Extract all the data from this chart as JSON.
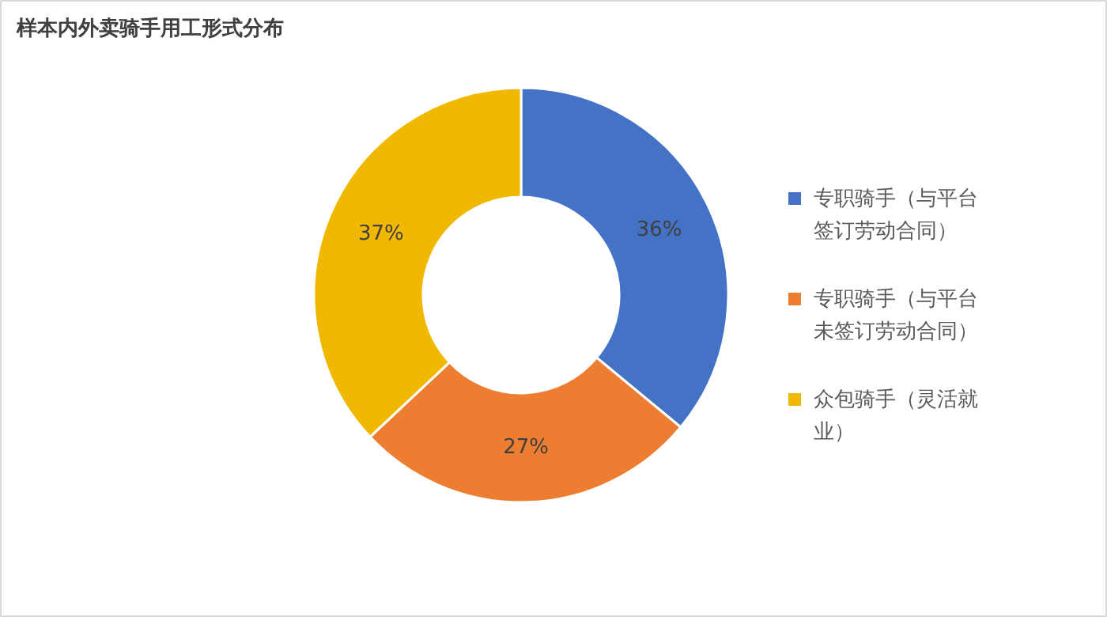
{
  "chart_data": {
    "type": "donut",
    "title": "样本内外卖骑手用工形式分布",
    "categories": [
      "专职骑手（与平台签订劳动合同）",
      "专职骑手（与平台未签订劳动合同）",
      "众包骑手（灵活就业）"
    ],
    "values": [
      36,
      27,
      37
    ],
    "colors": [
      "#4472c4",
      "#ed7d31",
      "#f0b800"
    ],
    "value_labels": [
      "36%",
      "27%",
      "37%"
    ],
    "legend": "right"
  }
}
